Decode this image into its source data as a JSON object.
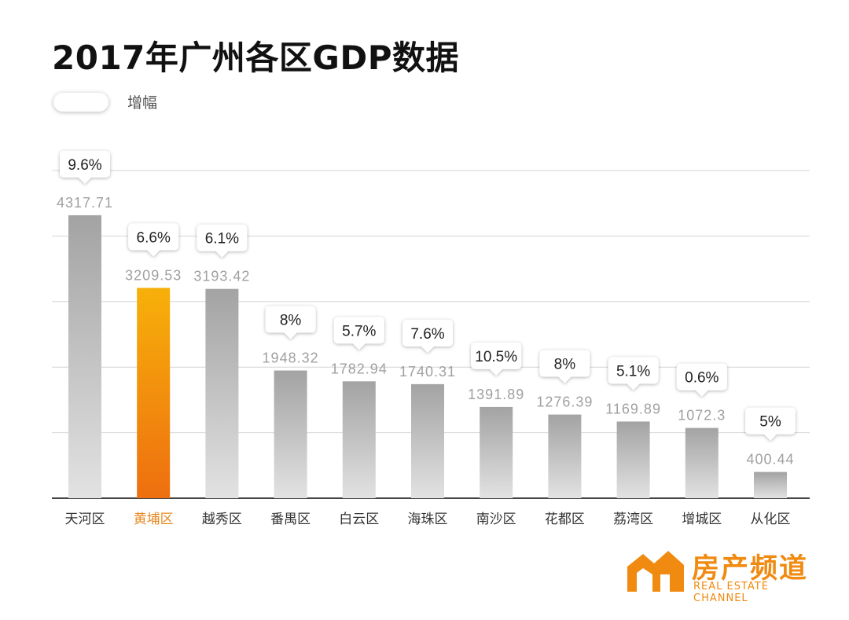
{
  "chart_data": {
    "type": "bar",
    "title": "2017年广州各区GDP数据",
    "legend": {
      "label": "增幅",
      "placement": "top-left"
    },
    "categories": [
      "天河区",
      "黄埔区",
      "越秀区",
      "番禺区",
      "白云区",
      "海珠区",
      "南沙区",
      "花都区",
      "荔湾区",
      "增城区",
      "从化区"
    ],
    "values": [
      4317.71,
      3209.53,
      3193.42,
      1948.32,
      1782.94,
      1740.31,
      1391.89,
      1276.39,
      1169.89,
      1072.3,
      400.44
    ],
    "value_labels": [
      "4317.71",
      "3209.53",
      "3193.42",
      "1948.32",
      "1782.94",
      "1740.31",
      "1391.89",
      "1276.39",
      "1169.89",
      "1072.3",
      "400.44"
    ],
    "growth_labels": [
      "9.6%",
      "6.6%",
      "6.1%",
      "8%",
      "5.7%",
      "7.6%",
      "10.5%",
      "8%",
      "5.1%",
      "0.6%",
      "5%"
    ],
    "highlight_index": 1,
    "ylim": [
      0,
      5000
    ],
    "grid": true,
    "colors": {
      "bar": "#a8a8a8",
      "highlight": "#f08010",
      "highlight_label": "#e8871e",
      "value_label": "#a0a0a0",
      "category_label": "#333333"
    }
  },
  "brand": {
    "name_cn": "房产频道",
    "name_en": "REAL ESTATE CHANNEL",
    "color": "#f08a10"
  }
}
